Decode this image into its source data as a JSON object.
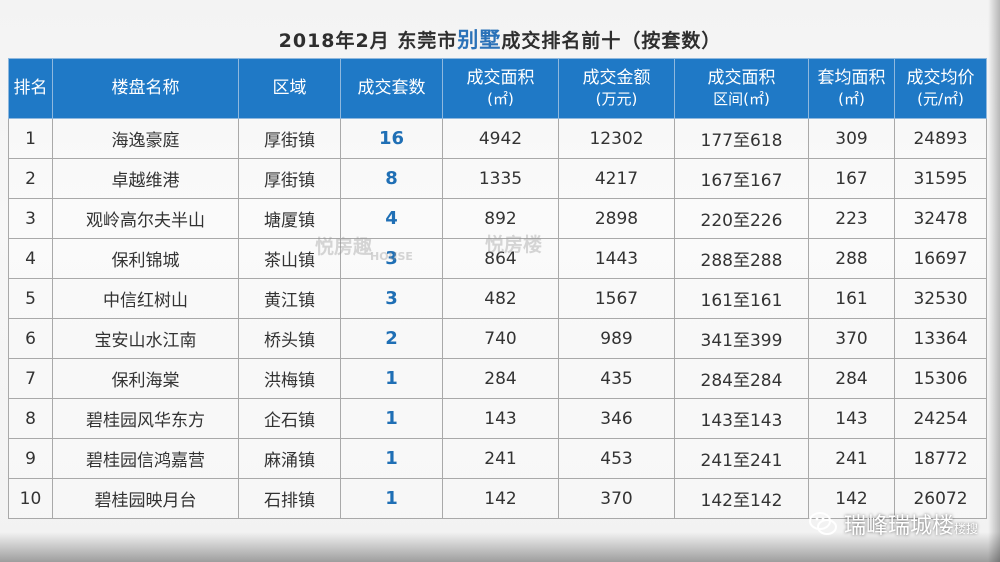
{
  "title": {
    "pre": "2018年2月 东莞市",
    "highlight": "别墅",
    "post": "成交排名前十（按套数）"
  },
  "table": {
    "headers": [
      {
        "main": "排名",
        "sub": ""
      },
      {
        "main": "楼盘名称",
        "sub": ""
      },
      {
        "main": "区域",
        "sub": ""
      },
      {
        "main": "成交套数",
        "sub": ""
      },
      {
        "main": "成交面积",
        "sub": "(㎡)"
      },
      {
        "main": "成交金额",
        "sub": "(万元)"
      },
      {
        "main": "成交面积",
        "sub": "区间(㎡)"
      },
      {
        "main": "套均面积",
        "sub": "(㎡)"
      },
      {
        "main": "成交均价",
        "sub": "(元/㎡)"
      }
    ],
    "rows": [
      [
        "1",
        "海逸豪庭",
        "厚街镇",
        "16",
        "4942",
        "12302",
        "177至618",
        "309",
        "24893"
      ],
      [
        "2",
        "卓越维港",
        "厚街镇",
        "8",
        "1335",
        "4217",
        "167至167",
        "167",
        "31595"
      ],
      [
        "3",
        "观岭高尔夫半山",
        "塘厦镇",
        "4",
        "892",
        "2898",
        "220至226",
        "223",
        "32478"
      ],
      [
        "4",
        "保利锦城",
        "茶山镇",
        "3",
        "864",
        "1443",
        "288至288",
        "288",
        "16697"
      ],
      [
        "5",
        "中信红树山",
        "黄江镇",
        "3",
        "482",
        "1567",
        "161至161",
        "161",
        "32530"
      ],
      [
        "6",
        "宝安山水江南",
        "桥头镇",
        "2",
        "740",
        "989",
        "341至399",
        "370",
        "13364"
      ],
      [
        "7",
        "保利海棠",
        "洪梅镇",
        "1",
        "284",
        "435",
        "284至284",
        "284",
        "15306"
      ],
      [
        "8",
        "碧桂园风华东方",
        "企石镇",
        "1",
        "143",
        "346",
        "143至143",
        "143",
        "24254"
      ],
      [
        "9",
        "碧桂园信鸿嘉营",
        "麻涌镇",
        "1",
        "241",
        "453",
        "241至241",
        "241",
        "18772"
      ],
      [
        "10",
        "碧桂园映月台",
        "石排镇",
        "1",
        "142",
        "370",
        "142至142",
        "142",
        "26072"
      ]
    ]
  },
  "watermark": {
    "text1": "悦房趣",
    "text2": "HOUSE",
    "text3": "悦房楼"
  },
  "brand": {
    "icon": "wechat-icon",
    "name": "瑞峰瑞城楼",
    "suffix": "楼搜"
  },
  "colors": {
    "header_bg": "#1f79c6",
    "highlight": "#2b72b8",
    "count": "#1f6fb5"
  }
}
